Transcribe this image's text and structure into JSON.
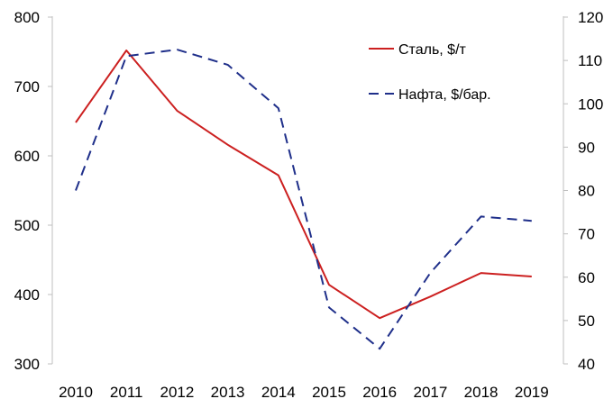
{
  "chart_data": {
    "type": "line",
    "categories": [
      "2010",
      "2011",
      "2012",
      "2013",
      "2014",
      "2015",
      "2016",
      "2017",
      "2018",
      "2019"
    ],
    "series": [
      {
        "name": "Сталь, $/т",
        "axis": "left",
        "color": "#cc2020",
        "style": "solid",
        "values": [
          648,
          752,
          665,
          616,
          572,
          414,
          366,
          397,
          431,
          426
        ]
      },
      {
        "name": "Нафта, $/бар.",
        "axis": "right",
        "color": "#1f2f8a",
        "style": "dashed",
        "values": [
          80,
          111,
          112.5,
          109,
          99,
          53,
          43.5,
          61,
          74,
          73
        ]
      }
    ],
    "y_left": {
      "lim": [
        300,
        800
      ],
      "ticks": [
        "300",
        "400",
        "500",
        "600",
        "700",
        "800"
      ]
    },
    "y_right": {
      "lim": [
        40,
        120
      ],
      "ticks": [
        "40",
        "50",
        "60",
        "70",
        "80",
        "90",
        "100",
        "110",
        "120"
      ]
    },
    "grid": false,
    "legend": "top-right"
  }
}
